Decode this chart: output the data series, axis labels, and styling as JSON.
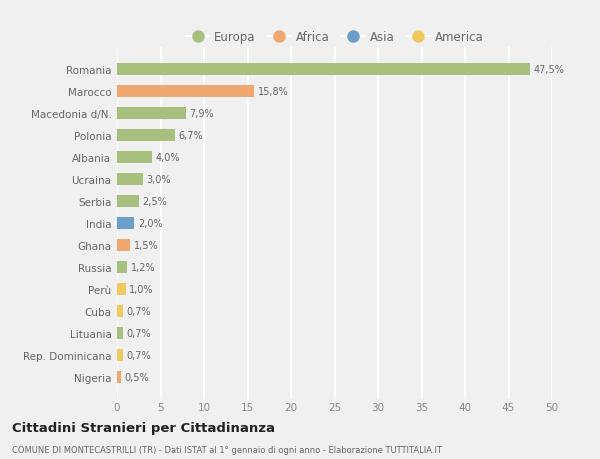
{
  "countries": [
    "Romania",
    "Marocco",
    "Macedonia d/N.",
    "Polonia",
    "Albania",
    "Ucraina",
    "Serbia",
    "India",
    "Ghana",
    "Russia",
    "Perù",
    "Cuba",
    "Lituania",
    "Rep. Dominicana",
    "Nigeria"
  ],
  "values": [
    47.5,
    15.8,
    7.9,
    6.7,
    4.0,
    3.0,
    2.5,
    2.0,
    1.5,
    1.2,
    1.0,
    0.7,
    0.7,
    0.7,
    0.5
  ],
  "labels": [
    "47,5%",
    "15,8%",
    "7,9%",
    "6,7%",
    "4,0%",
    "3,0%",
    "2,5%",
    "2,0%",
    "1,5%",
    "1,2%",
    "1,0%",
    "0,7%",
    "0,7%",
    "0,7%",
    "0,5%"
  ],
  "continents": [
    "Europa",
    "Africa",
    "Europa",
    "Europa",
    "Europa",
    "Europa",
    "Europa",
    "Asia",
    "Africa",
    "Europa",
    "America",
    "America",
    "Europa",
    "America",
    "Africa"
  ],
  "colors": {
    "Europa": "#a8c07e",
    "Africa": "#f0a870",
    "Asia": "#6b9ec8",
    "America": "#f0c860"
  },
  "bg_color": "#f0f0f0",
  "grid_color": "#ffffff",
  "title": "Cittadini Stranieri per Cittadinanza",
  "subtitle": "COMUNE DI MONTECASTRILLI (TR) - Dati ISTAT al 1° gennaio di ogni anno - Elaborazione TUTTITALIA.IT",
  "xlim": [
    0,
    50
  ],
  "xticks": [
    0,
    5,
    10,
    15,
    20,
    25,
    30,
    35,
    40,
    45,
    50
  ],
  "legend_order": [
    "Europa",
    "Africa",
    "Asia",
    "America"
  ],
  "label_color": "#666666",
  "tick_color": "#888888"
}
